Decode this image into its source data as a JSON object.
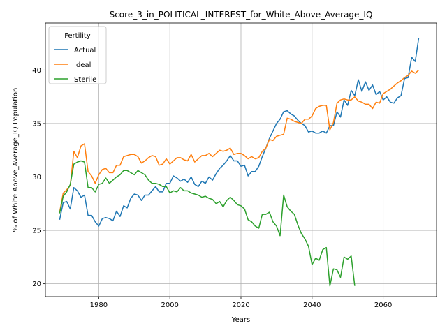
{
  "chart_data": {
    "type": "line",
    "title": "Score_3_in_POLITICAL_INTEREST_for_White_Above_Average_IQ",
    "xlabel": "Years",
    "ylabel": "% of White Above_Average_IQ Population",
    "xlim": [
      1965,
      2075
    ],
    "ylim": [
      18.8,
      44.4
    ],
    "xticks": [
      1980,
      2000,
      2020,
      2040,
      2060
    ],
    "yticks": [
      20,
      25,
      30,
      35,
      40
    ],
    "grid": true,
    "legend": {
      "title": "Fertility",
      "placement": "top-left"
    },
    "series": [
      {
        "name": "Actual",
        "color": "#1f77b4",
        "x": [
          1969,
          1970,
          1971,
          1972,
          1973,
          1974,
          1975,
          1976,
          1977,
          1978,
          1979,
          1980,
          1981,
          1982,
          1983,
          1984,
          1985,
          1986,
          1987,
          1988,
          1989,
          1990,
          1991,
          1992,
          1993,
          1994,
          1995,
          1996,
          1997,
          1998,
          1999,
          2000,
          2001,
          2002,
          2003,
          2004,
          2005,
          2006,
          2007,
          2008,
          2009,
          2010,
          2011,
          2012,
          2013,
          2014,
          2015,
          2016,
          2017,
          2018,
          2019,
          2020,
          2021,
          2022,
          2023,
          2024,
          2025,
          2026,
          2027,
          2028,
          2029,
          2030,
          2031,
          2032,
          2033,
          2034,
          2035,
          2036,
          2037,
          2038,
          2039,
          2040,
          2041,
          2042,
          2043,
          2044,
          2045,
          2046,
          2047,
          2048,
          2049,
          2050,
          2051,
          2052,
          2053,
          2054,
          2055,
          2056,
          2057,
          2058,
          2059,
          2060,
          2061,
          2062,
          2063,
          2064,
          2065,
          2066,
          2067,
          2068,
          2069,
          2070
        ],
        "values": [
          26.0,
          27.6,
          27.7,
          27.0,
          29.0,
          28.7,
          28.1,
          28.3,
          26.4,
          26.4,
          25.8,
          25.4,
          26.1,
          26.2,
          26.1,
          25.9,
          26.8,
          26.3,
          27.3,
          27.1,
          28.0,
          28.4,
          28.3,
          27.8,
          28.3,
          28.3,
          28.7,
          29.1,
          28.6,
          28.6,
          29.4,
          29.4,
          30.1,
          29.9,
          29.6,
          29.8,
          29.5,
          30.0,
          29.3,
          29.1,
          29.6,
          29.4,
          30.0,
          29.7,
          30.3,
          30.8,
          31.1,
          31.5,
          32.0,
          31.5,
          31.5,
          31.0,
          31.1,
          30.1,
          30.5,
          30.5,
          31.0,
          31.9,
          32.7,
          33.6,
          34.3,
          35.0,
          35.4,
          36.1,
          36.2,
          35.9,
          35.7,
          35.3,
          35.0,
          34.8,
          34.2,
          34.3,
          34.1,
          34.1,
          34.3,
          34.1,
          34.8,
          34.8,
          36.1,
          35.6,
          37.2,
          36.7,
          38.1,
          37.6,
          39.1,
          38.0,
          38.9,
          38.1,
          38.6,
          37.7,
          38.0,
          37.2,
          37.5,
          37.0,
          36.9,
          37.4,
          37.6,
          39.2,
          39.3,
          41.2,
          40.8,
          43.0
        ]
      },
      {
        "name": "Ideal",
        "color": "#ff7f0e",
        "x": [
          1969,
          1970,
          1971,
          1972,
          1973,
          1974,
          1975,
          1976,
          1977,
          1978,
          1979,
          1980,
          1981,
          1982,
          1983,
          1984,
          1985,
          1986,
          1987,
          1988,
          1989,
          1990,
          1991,
          1992,
          1993,
          1994,
          1995,
          1996,
          1997,
          1998,
          1999,
          2000,
          2001,
          2002,
          2003,
          2004,
          2005,
          2006,
          2007,
          2008,
          2009,
          2010,
          2011,
          2012,
          2013,
          2014,
          2015,
          2016,
          2017,
          2018,
          2019,
          2020,
          2021,
          2022,
          2023,
          2024,
          2025,
          2026,
          2027,
          2028,
          2029,
          2030,
          2031,
          2032,
          2033,
          2034,
          2035,
          2036,
          2037,
          2038,
          2039,
          2040,
          2041,
          2042,
          2043,
          2044,
          2045,
          2046,
          2047,
          2048,
          2049,
          2050,
          2051,
          2052,
          2053,
          2054,
          2055,
          2056,
          2057,
          2058,
          2059,
          2060,
          2061,
          2062,
          2063,
          2064,
          2065,
          2066,
          2067,
          2068,
          2069,
          2070
        ],
        "values": [
          26.7,
          28.5,
          28.8,
          29.2,
          32.4,
          31.8,
          32.9,
          33.1,
          30.5,
          30.1,
          29.4,
          30.2,
          30.7,
          30.8,
          30.4,
          30.4,
          31.1,
          31.1,
          31.9,
          32.0,
          32.1,
          32.1,
          31.9,
          31.3,
          31.5,
          31.8,
          32.0,
          31.9,
          31.1,
          31.2,
          31.7,
          31.2,
          31.5,
          31.8,
          31.8,
          31.6,
          31.5,
          32.1,
          31.4,
          31.7,
          32.0,
          32.0,
          32.2,
          31.9,
          32.2,
          32.5,
          32.4,
          32.5,
          32.7,
          32.1,
          32.2,
          32.2,
          32.0,
          31.7,
          31.9,
          31.7,
          31.8,
          32.4,
          32.7,
          33.5,
          33.4,
          33.8,
          33.9,
          34.0,
          35.5,
          35.4,
          35.2,
          35.1,
          35.0,
          35.4,
          35.4,
          35.7,
          36.4,
          36.6,
          36.7,
          36.7,
          34.4,
          35.1,
          36.9,
          37.2,
          37.3,
          37.2,
          37.2,
          37.5,
          37.1,
          37.0,
          36.8,
          36.8,
          36.4,
          37.0,
          36.9,
          37.8,
          38.0,
          38.2,
          38.5,
          38.8,
          39.0,
          39.3,
          39.5,
          39.9,
          39.7,
          40.0
        ]
      },
      {
        "name": "Sterile",
        "color": "#2ca02c",
        "x": [
          1969,
          1970,
          1971,
          1972,
          1973,
          1974,
          1975,
          1976,
          1977,
          1978,
          1979,
          1980,
          1981,
          1982,
          1983,
          1984,
          1985,
          1986,
          1987,
          1988,
          1989,
          1990,
          1991,
          1992,
          1993,
          1994,
          1995,
          1996,
          1997,
          1998,
          1999,
          2000,
          2001,
          2002,
          2003,
          2004,
          2005,
          2006,
          2007,
          2008,
          2009,
          2010,
          2011,
          2012,
          2013,
          2014,
          2015,
          2016,
          2017,
          2018,
          2019,
          2020,
          2021,
          2022,
          2023,
          2024,
          2025,
          2026,
          2027,
          2028,
          2029,
          2030,
          2031,
          2032,
          2033,
          2034,
          2035,
          2036,
          2037,
          2038,
          2039,
          2040,
          2041,
          2042,
          2043,
          2044,
          2045,
          2046,
          2047,
          2048,
          2049,
          2050,
          2051,
          2052
        ],
        "values": [
          26.6,
          28.2,
          28.6,
          29.3,
          31.2,
          31.4,
          31.5,
          31.4,
          29.0,
          29.0,
          28.6,
          29.3,
          29.4,
          29.9,
          29.4,
          29.7,
          30.0,
          30.2,
          30.6,
          30.6,
          30.4,
          30.2,
          30.6,
          30.4,
          30.2,
          29.7,
          29.4,
          29.4,
          29.3,
          29.1,
          29.1,
          28.5,
          28.7,
          28.6,
          29.0,
          28.7,
          28.7,
          28.5,
          28.4,
          28.3,
          28.1,
          28.2,
          28.0,
          27.9,
          27.5,
          27.7,
          27.2,
          27.8,
          28.1,
          27.8,
          27.4,
          27.3,
          27.0,
          26.0,
          25.8,
          25.4,
          25.2,
          26.5,
          26.5,
          26.7,
          25.8,
          25.4,
          24.5,
          28.3,
          27.2,
          26.8,
          26.5,
          25.5,
          24.7,
          24.2,
          23.5,
          21.8,
          22.4,
          22.2,
          23.2,
          23.4,
          19.8,
          21.4,
          21.3,
          20.6,
          22.5,
          22.3,
          22.6,
          19.8
        ]
      }
    ]
  }
}
